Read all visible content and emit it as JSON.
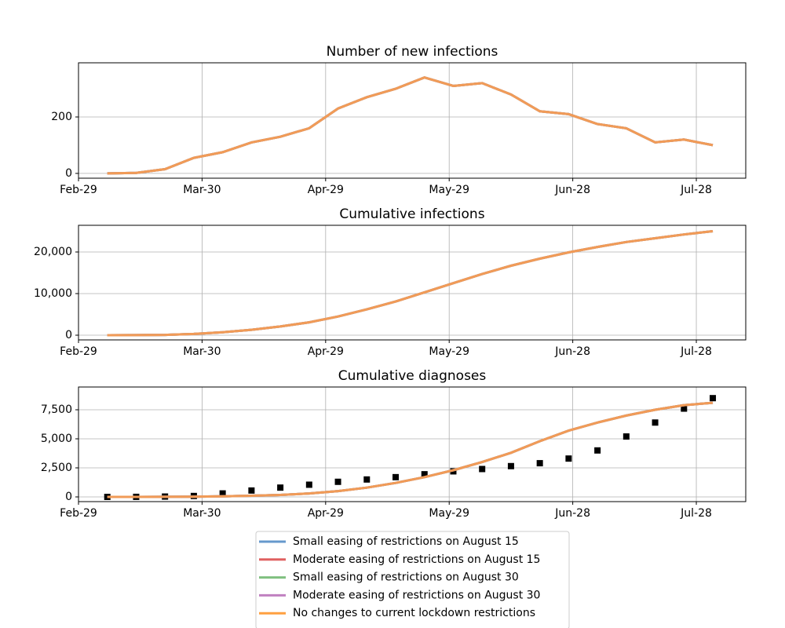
{
  "chart_data": [
    {
      "type": "line",
      "title": "Number of new infections",
      "x": [
        "Mar-07",
        "Mar-14",
        "Mar-21",
        "Mar-28",
        "Apr-04",
        "Apr-11",
        "Apr-18",
        "Apr-25",
        "May-02",
        "May-09",
        "May-16",
        "May-23",
        "May-30",
        "Jun-06",
        "Jun-13",
        "Jun-20",
        "Jun-27",
        "Jul-04",
        "Jul-11",
        "Jul-18",
        "Jul-25",
        "Aug-01"
      ],
      "xlim": [
        "Feb-29",
        "Aug-09"
      ],
      "xticks": [
        "Feb-29",
        "Mar-30",
        "Apr-29",
        "May-29",
        "Jun-28",
        "Jul-28"
      ],
      "ylim": [
        -17,
        392
      ],
      "yticks": [
        0,
        200
      ],
      "grid": true,
      "series": [
        {
          "color": "#6699cc",
          "values": [
            0,
            2,
            15,
            55,
            75,
            110,
            130,
            160,
            230,
            270,
            300,
            340,
            310,
            320,
            280,
            220,
            210,
            175,
            160,
            110,
            120,
            100
          ]
        },
        {
          "color": "#e06060",
          "values": [
            0,
            2,
            15,
            55,
            75,
            110,
            130,
            160,
            230,
            270,
            300,
            340,
            310,
            320,
            280,
            220,
            210,
            175,
            160,
            110,
            120,
            100
          ]
        },
        {
          "color": "#80c080",
          "values": [
            0,
            2,
            15,
            55,
            75,
            110,
            130,
            160,
            230,
            270,
            300,
            340,
            310,
            320,
            280,
            220,
            210,
            175,
            160,
            110,
            120,
            100
          ]
        },
        {
          "color": "#c080c0",
          "values": [
            0,
            2,
            15,
            55,
            75,
            110,
            130,
            160,
            230,
            270,
            300,
            340,
            310,
            320,
            280,
            220,
            210,
            175,
            160,
            110,
            120,
            100
          ]
        },
        {
          "color": "#ffa040",
          "values": [
            0,
            2,
            15,
            55,
            75,
            110,
            130,
            160,
            230,
            270,
            300,
            340,
            310,
            320,
            280,
            220,
            210,
            175,
            160,
            110,
            120,
            100
          ]
        }
      ]
    },
    {
      "type": "line",
      "title": "Cumulative infections",
      "x": [
        "Mar-07",
        "Mar-14",
        "Mar-21",
        "Mar-28",
        "Apr-04",
        "Apr-11",
        "Apr-18",
        "Apr-25",
        "May-02",
        "May-09",
        "May-16",
        "May-23",
        "May-30",
        "Jun-06",
        "Jun-13",
        "Jun-20",
        "Jun-27",
        "Jul-04",
        "Jul-11",
        "Jul-18",
        "Jul-25",
        "Aug-01"
      ],
      "xlim": [
        "Feb-29",
        "Aug-09"
      ],
      "xticks": [
        "Feb-29",
        "Mar-30",
        "Apr-29",
        "May-29",
        "Jun-28",
        "Jul-28"
      ],
      "ylim": [
        -1132,
        26415
      ],
      "yticks": [
        0,
        {
          "value": 10000,
          "label": "10,000"
        },
        {
          "value": 20000,
          "label": "20,000"
        }
      ],
      "grid": true,
      "series": [
        {
          "color": "#6699cc",
          "values": [
            0,
            10,
            80,
            300,
            700,
            1300,
            2100,
            3100,
            4500,
            6200,
            8100,
            10300,
            12500,
            14700,
            16700,
            18400,
            19900,
            21200,
            22400,
            23300,
            24200,
            25000
          ]
        },
        {
          "color": "#e06060",
          "values": [
            0,
            10,
            80,
            300,
            700,
            1300,
            2100,
            3100,
            4500,
            6200,
            8100,
            10300,
            12500,
            14700,
            16700,
            18400,
            19900,
            21200,
            22400,
            23300,
            24200,
            25000
          ]
        },
        {
          "color": "#80c080",
          "values": [
            0,
            10,
            80,
            300,
            700,
            1300,
            2100,
            3100,
            4500,
            6200,
            8100,
            10300,
            12500,
            14700,
            16700,
            18400,
            19900,
            21200,
            22400,
            23300,
            24200,
            25000
          ]
        },
        {
          "color": "#c080c0",
          "values": [
            0,
            10,
            80,
            300,
            700,
            1300,
            2100,
            3100,
            4500,
            6200,
            8100,
            10300,
            12500,
            14700,
            16700,
            18400,
            19900,
            21200,
            22400,
            23300,
            24200,
            25000
          ]
        },
        {
          "color": "#ffa040",
          "values": [
            0,
            10,
            80,
            300,
            700,
            1300,
            2100,
            3100,
            4500,
            6200,
            8100,
            10300,
            12500,
            14700,
            16700,
            18400,
            19900,
            21200,
            22400,
            23300,
            24200,
            25000
          ]
        }
      ]
    },
    {
      "type": "line",
      "title": "Cumulative diagnoses",
      "x": [
        "Mar-07",
        "Mar-14",
        "Mar-21",
        "Mar-28",
        "Apr-04",
        "Apr-11",
        "Apr-18",
        "Apr-25",
        "May-02",
        "May-09",
        "May-16",
        "May-23",
        "May-30",
        "Jun-06",
        "Jun-13",
        "Jun-20",
        "Jun-27",
        "Jul-04",
        "Jul-11",
        "Jul-18",
        "Jul-25",
        "Aug-01"
      ],
      "xlim": [
        "Feb-29",
        "Aug-09"
      ],
      "xticks": [
        "Feb-29",
        "Mar-30",
        "Apr-29",
        "May-29",
        "Jun-28",
        "Jul-28"
      ],
      "ylim": [
        -405,
        9459
      ],
      "yticks": [
        0,
        {
          "value": 2500,
          "label": "2,500"
        },
        {
          "value": 5000,
          "label": "5,000"
        },
        {
          "value": 7500,
          "label": "7,500"
        }
      ],
      "grid": true,
      "series": [
        {
          "color": "#000000",
          "marker": "square",
          "values": [
            0,
            5,
            30,
            80,
            300,
            550,
            800,
            1050,
            1300,
            1500,
            1700,
            1950,
            2200,
            2400,
            2650,
            2900,
            3300,
            4000,
            5200,
            6400,
            7600,
            8500
          ]
        },
        {
          "name": "Small easing of restrictions on August 15",
          "color": "#6699cc",
          "values": [
            0,
            0,
            5,
            20,
            50,
            100,
            170,
            300,
            500,
            800,
            1200,
            1700,
            2300,
            3000,
            3800,
            4800,
            5700,
            6400,
            7000,
            7500,
            7900,
            8100
          ]
        },
        {
          "name": "Moderate easing of restrictions on August 15",
          "color": "#e06060",
          "values": [
            0,
            0,
            5,
            20,
            50,
            100,
            170,
            300,
            500,
            800,
            1200,
            1700,
            2300,
            3000,
            3800,
            4800,
            5700,
            6400,
            7000,
            7500,
            7900,
            8100
          ]
        },
        {
          "name": "Small easing of restrictions on August 30",
          "color": "#80c080",
          "values": [
            0,
            0,
            5,
            20,
            50,
            100,
            170,
            300,
            500,
            800,
            1200,
            1700,
            2300,
            3000,
            3800,
            4800,
            5700,
            6400,
            7000,
            7500,
            7900,
            8100
          ]
        },
        {
          "name": "Moderate easing of restrictions on August 30",
          "color": "#c080c0",
          "values": [
            0,
            0,
            5,
            20,
            50,
            100,
            170,
            300,
            500,
            800,
            1200,
            1700,
            2300,
            3000,
            3800,
            4800,
            5700,
            6400,
            7000,
            7500,
            7900,
            8100
          ]
        },
        {
          "name": "No changes to current lockdown restrictions",
          "color": "#ffa040",
          "values": [
            0,
            0,
            5,
            20,
            50,
            100,
            170,
            300,
            500,
            800,
            1200,
            1700,
            2300,
            3000,
            3800,
            4800,
            5700,
            6400,
            7000,
            7500,
            7900,
            8100
          ]
        }
      ]
    }
  ]
}
